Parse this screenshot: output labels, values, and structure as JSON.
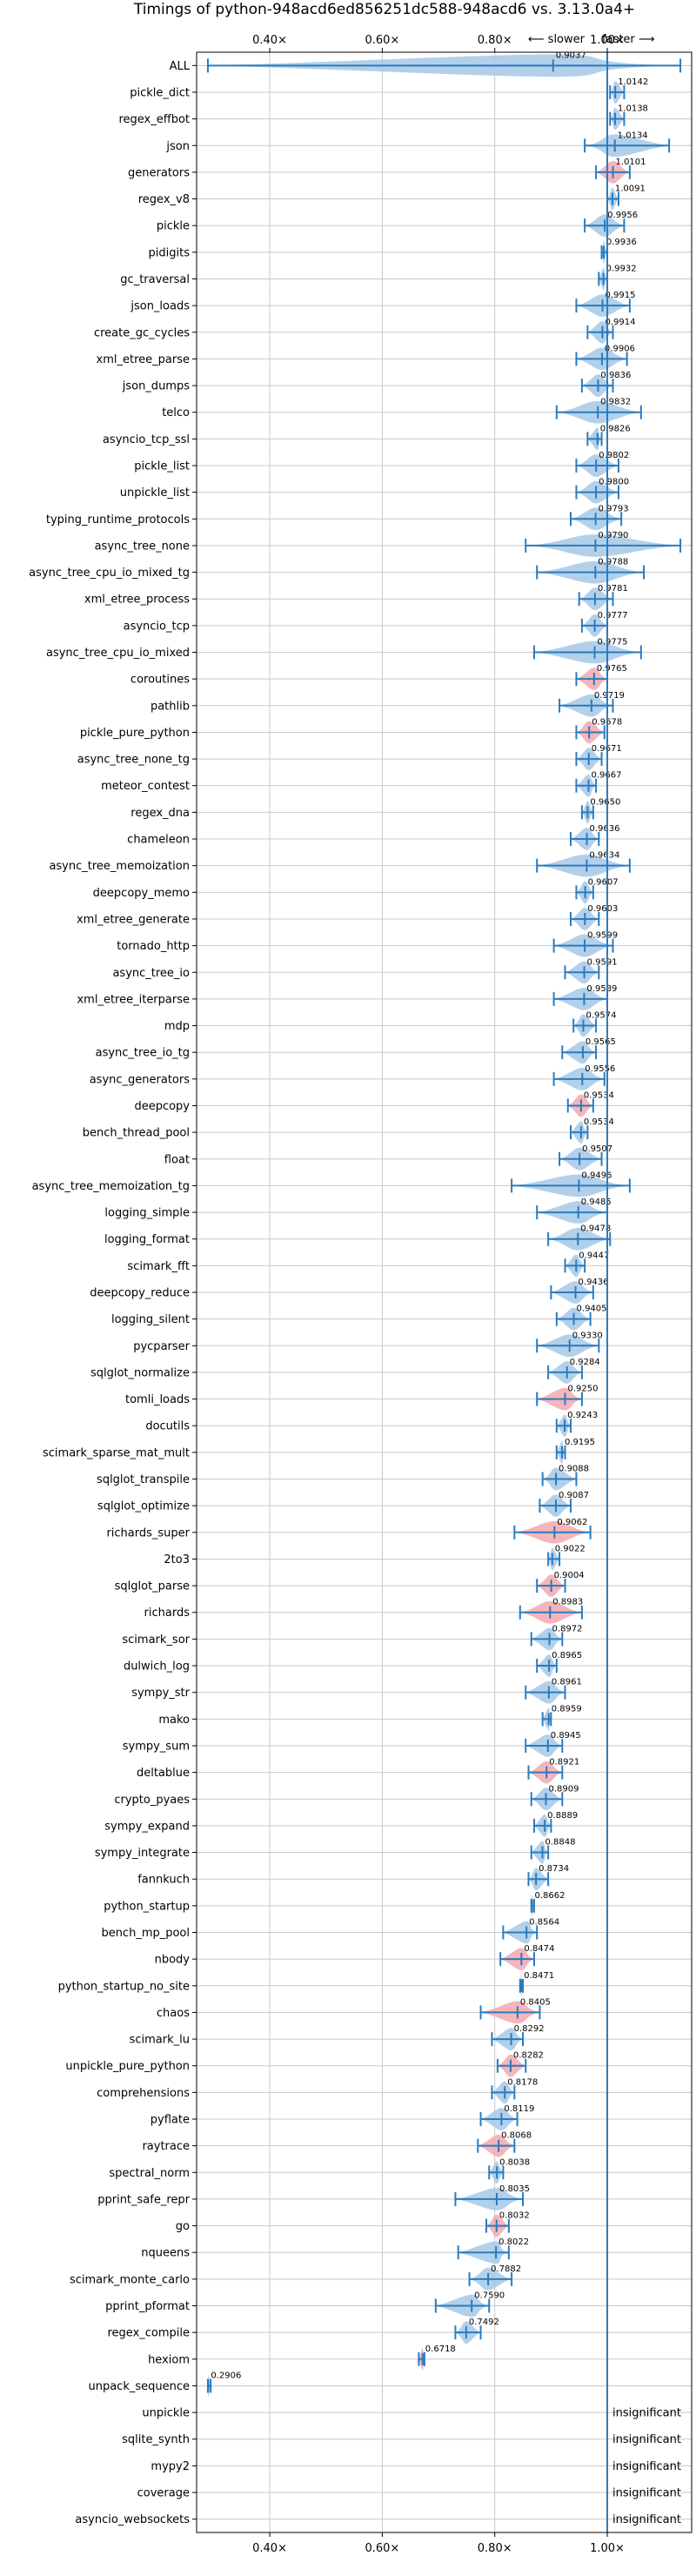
{
  "chart_data": {
    "type": "violin",
    "title": "Timings of python-948acd6ed856251dc588-948acd6 vs. 3.13.0a4+",
    "xlim": [
      0.27,
      1.15
    ],
    "x_ticks": [
      0.4,
      0.6,
      0.8,
      1.0
    ],
    "x_tick_labels": [
      "0.40×",
      "0.60×",
      "0.80×",
      "1.00×"
    ],
    "reference_x": 1.0,
    "direction_labels": [
      "⟵ slower",
      "faster ⟶"
    ],
    "grid": true,
    "insignificant_label": "insignificant",
    "colors": {
      "normal": "#a6c8e8",
      "slow": "#f3a8ae",
      "line": "#2b7bbd",
      "grid": "#c8c8c8"
    },
    "categories": [
      "ALL",
      "pickle_dict",
      "regex_effbot",
      "json",
      "generators",
      "regex_v8",
      "pickle",
      "pidigits",
      "gc_traversal",
      "json_loads",
      "create_gc_cycles",
      "xml_etree_parse",
      "json_dumps",
      "telco",
      "asyncio_tcp_ssl",
      "pickle_list",
      "unpickle_list",
      "typing_runtime_protocols",
      "async_tree_none",
      "async_tree_cpu_io_mixed_tg",
      "xml_etree_process",
      "asyncio_tcp",
      "async_tree_cpu_io_mixed",
      "coroutines",
      "pathlib",
      "pickle_pure_python",
      "async_tree_none_tg",
      "meteor_contest",
      "regex_dna",
      "chameleon",
      "async_tree_memoization",
      "deepcopy_memo",
      "xml_etree_generate",
      "tornado_http",
      "async_tree_io",
      "xml_etree_iterparse",
      "mdp",
      "async_tree_io_tg",
      "async_generators",
      "deepcopy",
      "bench_thread_pool",
      "float",
      "async_tree_memoization_tg",
      "logging_simple",
      "logging_format",
      "scimark_fft",
      "deepcopy_reduce",
      "logging_silent",
      "pycparser",
      "sqlglot_normalize",
      "tomli_loads",
      "docutils",
      "scimark_sparse_mat_mult",
      "sqlglot_transpile",
      "sqlglot_optimize",
      "richards_super",
      "2to3",
      "sqlglot_parse",
      "richards",
      "scimark_sor",
      "dulwich_log",
      "sympy_str",
      "mako",
      "sympy_sum",
      "deltablue",
      "crypto_pyaes",
      "sympy_expand",
      "sympy_integrate",
      "fannkuch",
      "python_startup",
      "bench_mp_pool",
      "nbody",
      "python_startup_no_site",
      "chaos",
      "scimark_lu",
      "unpickle_pure_python",
      "comprehensions",
      "pyflate",
      "raytrace",
      "spectral_norm",
      "pprint_safe_repr",
      "go",
      "nqueens",
      "scimark_monte_carlo",
      "pprint_pformat",
      "regex_compile",
      "hexiom",
      "unpack_sequence",
      "unpickle",
      "sqlite_synth",
      "mypy2",
      "coverage",
      "asyncio_websockets"
    ],
    "values": [
      0.9037,
      1.0142,
      1.0138,
      1.0134,
      1.0101,
      1.0091,
      0.9956,
      0.9936,
      0.9932,
      0.9915,
      0.9914,
      0.9906,
      0.9836,
      0.9832,
      0.9826,
      0.9802,
      0.98,
      0.9793,
      0.979,
      0.9788,
      0.9781,
      0.9777,
      0.9775,
      0.9765,
      0.9719,
      0.9678,
      0.9671,
      0.9667,
      0.965,
      0.9636,
      0.9634,
      0.9607,
      0.9603,
      0.9599,
      0.9591,
      0.9589,
      0.9574,
      0.9565,
      0.9556,
      0.9534,
      0.9534,
      0.9507,
      0.9496,
      0.9485,
      0.9478,
      0.9447,
      0.9436,
      0.9405,
      0.933,
      0.9284,
      0.925,
      0.9243,
      0.9195,
      0.9088,
      0.9087,
      0.9062,
      0.9022,
      0.9004,
      0.8983,
      0.8972,
      0.8965,
      0.8961,
      0.8959,
      0.8945,
      0.8921,
      0.8909,
      0.8889,
      0.8848,
      0.8734,
      0.8662,
      0.8564,
      0.8474,
      0.8471,
      0.8405,
      0.8292,
      0.8282,
      0.8178,
      0.8119,
      0.8068,
      0.8038,
      0.8035,
      0.8032,
      0.8022,
      0.7882,
      0.759,
      0.7492,
      0.6718,
      0.2906,
      null,
      null,
      null,
      null,
      null
    ],
    "value_labels": [
      "0.9037",
      "1.0142",
      "1.0138",
      "1.0134",
      "1.0101",
      "1.0091",
      "0.9956",
      "0.9936",
      "0.9932",
      "0.9915",
      "0.9914",
      "0.9906",
      "0.9836",
      "0.9832",
      "0.9826",
      "0.9802",
      "0.9800",
      "0.9793",
      "0.9790",
      "0.9788",
      "0.9781",
      "0.9777",
      "0.9775",
      "0.9765",
      "0.9719",
      "0.9678",
      "0.9671",
      "0.9667",
      "0.9650",
      "0.9636",
      "0.9634",
      "0.9607",
      "0.9603",
      "0.9599",
      "0.9591",
      "0.9589",
      "0.9574",
      "0.9565",
      "0.9556",
      "0.9534",
      "0.9534",
      "0.9507",
      "0.9496",
      "0.9485",
      "0.9478",
      "0.9447",
      "0.9436",
      "0.9405",
      "0.9330",
      "0.9284",
      "0.9250",
      "0.9243",
      "0.9195",
      "0.9088",
      "0.9087",
      "0.9062",
      "0.9022",
      "0.9004",
      "0.8983",
      "0.8972",
      "0.8965",
      "0.8961",
      "0.8959",
      "0.8945",
      "0.8921",
      "0.8909",
      "0.8889",
      "0.8848",
      "0.8734",
      "0.8662",
      "0.8564",
      "0.8474",
      "0.8471",
      "0.8405",
      "0.8292",
      "0.8282",
      "0.8178",
      "0.8119",
      "0.8068",
      "0.8038",
      "0.8035",
      "0.8032",
      "0.8022",
      "0.7882",
      "0.7590",
      "0.7492",
      "0.6718",
      "0.2906",
      "",
      "",
      "",
      "",
      ""
    ],
    "mins": [
      0.29,
      1.005,
      1.005,
      0.96,
      0.98,
      1.0,
      0.96,
      0.99,
      0.985,
      0.945,
      0.965,
      0.945,
      0.955,
      0.91,
      0.965,
      0.945,
      0.945,
      0.935,
      0.855,
      0.875,
      0.95,
      0.955,
      0.87,
      0.945,
      0.915,
      0.945,
      0.945,
      0.945,
      0.955,
      0.935,
      0.875,
      0.945,
      0.935,
      0.905,
      0.925,
      0.905,
      0.94,
      0.92,
      0.905,
      0.93,
      0.935,
      0.915,
      0.83,
      0.875,
      0.895,
      0.925,
      0.9,
      0.91,
      0.875,
      0.895,
      0.875,
      0.91,
      0.91,
      0.885,
      0.88,
      0.835,
      0.895,
      0.875,
      0.845,
      0.865,
      0.875,
      0.855,
      0.885,
      0.855,
      0.86,
      0.865,
      0.87,
      0.865,
      0.86,
      0.865,
      0.815,
      0.81,
      0.845,
      0.775,
      0.795,
      0.805,
      0.795,
      0.775,
      0.77,
      0.79,
      0.73,
      0.785,
      0.735,
      0.755,
      0.695,
      0.73,
      0.665,
      0.29,
      null,
      null,
      null,
      null,
      null
    ],
    "maxs": [
      1.13,
      1.03,
      1.03,
      1.11,
      1.04,
      1.02,
      1.03,
      1.0,
      1.0,
      1.04,
      1.01,
      1.035,
      1.01,
      1.06,
      0.99,
      1.02,
      1.02,
      1.025,
      1.13,
      1.065,
      1.01,
      1.0,
      1.06,
      1.0,
      1.01,
      0.995,
      0.99,
      0.98,
      0.975,
      0.985,
      1.04,
      0.975,
      0.985,
      1.01,
      0.985,
      1.0,
      0.98,
      0.98,
      0.995,
      0.975,
      0.965,
      0.99,
      1.04,
      1.0,
      1.005,
      0.96,
      0.975,
      0.97,
      0.985,
      0.955,
      0.955,
      0.935,
      0.925,
      0.945,
      0.935,
      0.97,
      0.915,
      0.925,
      0.955,
      0.92,
      0.91,
      0.925,
      0.9,
      0.92,
      0.92,
      0.92,
      0.9,
      0.895,
      0.895,
      0.87,
      0.875,
      0.87,
      0.85,
      0.88,
      0.85,
      0.855,
      0.835,
      0.84,
      0.835,
      0.815,
      0.85,
      0.825,
      0.825,
      0.83,
      0.79,
      0.775,
      0.675,
      0.295,
      null,
      null,
      null,
      null,
      null
    ],
    "slow": [
      false,
      false,
      false,
      false,
      true,
      false,
      false,
      false,
      false,
      false,
      false,
      false,
      false,
      false,
      false,
      false,
      false,
      false,
      false,
      false,
      false,
      false,
      false,
      true,
      false,
      true,
      false,
      false,
      false,
      false,
      false,
      false,
      false,
      false,
      false,
      false,
      false,
      false,
      false,
      true,
      false,
      false,
      false,
      false,
      false,
      false,
      false,
      false,
      false,
      false,
      true,
      false,
      false,
      false,
      false,
      true,
      false,
      true,
      true,
      false,
      false,
      false,
      false,
      false,
      true,
      false,
      false,
      false,
      false,
      false,
      false,
      true,
      false,
      true,
      false,
      true,
      false,
      false,
      true,
      false,
      false,
      true,
      false,
      false,
      false,
      false,
      true,
      false,
      false,
      false,
      false,
      false,
      false
    ],
    "insignificant": [
      false,
      false,
      false,
      false,
      false,
      false,
      false,
      false,
      false,
      false,
      false,
      false,
      false,
      false,
      false,
      false,
      false,
      false,
      false,
      false,
      false,
      false,
      false,
      false,
      false,
      false,
      false,
      false,
      false,
      false,
      false,
      false,
      false,
      false,
      false,
      false,
      false,
      false,
      false,
      false,
      false,
      false,
      false,
      false,
      false,
      false,
      false,
      false,
      false,
      false,
      false,
      false,
      false,
      false,
      false,
      false,
      false,
      false,
      false,
      false,
      false,
      false,
      false,
      false,
      false,
      false,
      false,
      false,
      false,
      false,
      false,
      false,
      false,
      false,
      false,
      false,
      false,
      false,
      false,
      false,
      false,
      false,
      false,
      false,
      false,
      false,
      false,
      false,
      true,
      true,
      true,
      true,
      true
    ]
  }
}
